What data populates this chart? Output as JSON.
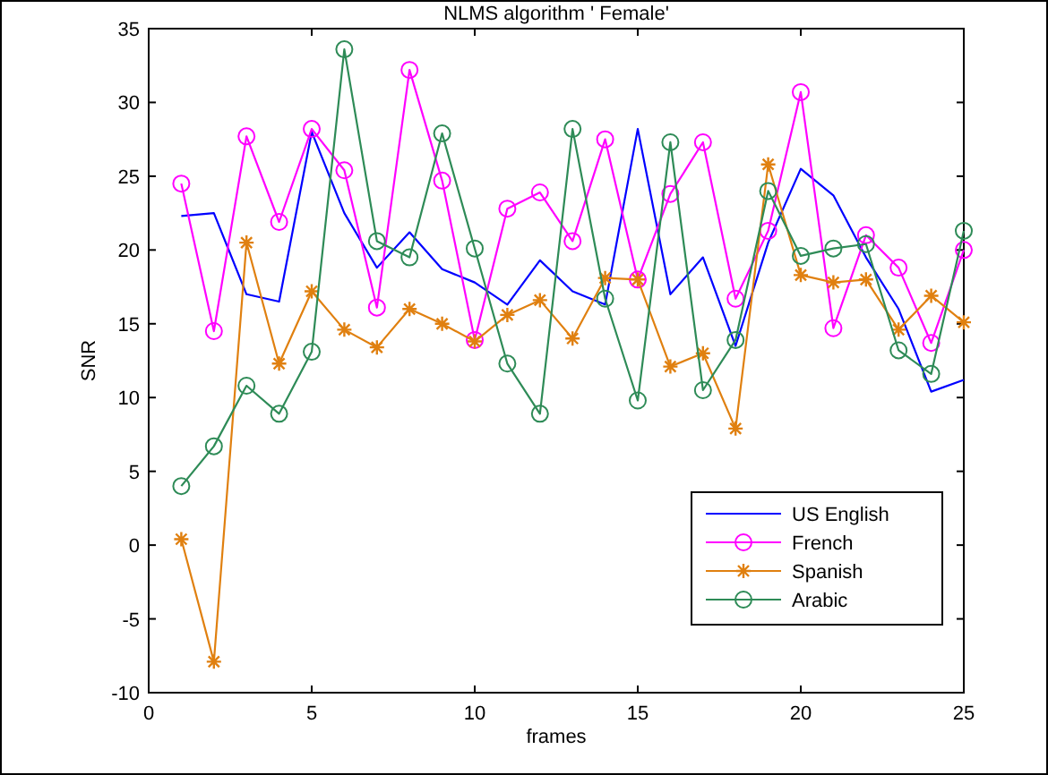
{
  "chart_data": {
    "type": "line",
    "title": "NLMS algorithm ' Female'",
    "xlabel": "frames",
    "ylabel": "SNR",
    "x": [
      1,
      2,
      3,
      4,
      5,
      6,
      7,
      8,
      9,
      10,
      11,
      12,
      13,
      14,
      15,
      16,
      17,
      18,
      19,
      20,
      21,
      22,
      23,
      24,
      25
    ],
    "series": [
      {
        "name": "US English",
        "color": "#0000ff",
        "marker": "none",
        "values": [
          22.3,
          22.5,
          17,
          16.5,
          28,
          22.5,
          18.8,
          21.2,
          18.7,
          17.8,
          16.3,
          19.3,
          17.2,
          16.3,
          28.2,
          17,
          19.5,
          13.5,
          20.5,
          25.5,
          23.7,
          19.5,
          16,
          10.4,
          11.2
        ]
      },
      {
        "name": "French",
        "color": "#ff00ff",
        "marker": "circle",
        "values": [
          24.5,
          14.5,
          27.7,
          21.9,
          28.2,
          25.4,
          16.1,
          32.2,
          24.7,
          13.9,
          22.8,
          23.9,
          20.6,
          27.5,
          18,
          23.8,
          27.3,
          16.7,
          21.3,
          30.7,
          14.7,
          21,
          18.8,
          13.7,
          20
        ]
      },
      {
        "name": "Spanish",
        "color": "#e08010",
        "marker": "cross",
        "values": [
          0.4,
          -7.9,
          20.5,
          12.3,
          17.2,
          14.6,
          13.4,
          16,
          15,
          13.8,
          15.6,
          16.6,
          14,
          18.1,
          18,
          12.1,
          13,
          7.9,
          25.8,
          18.3,
          17.8,
          18,
          14.6,
          16.9,
          15.1
        ]
      },
      {
        "name": "Arabic",
        "color": "#2e8b57",
        "marker": "circle",
        "values": [
          4,
          6.7,
          10.8,
          8.9,
          13.1,
          33.6,
          20.6,
          19.5,
          27.9,
          20.1,
          12.3,
          8.9,
          28.2,
          16.7,
          9.8,
          27.3,
          10.5,
          13.9,
          24,
          19.6,
          20.1,
          20.4,
          13.2,
          11.6,
          21.3
        ]
      }
    ],
    "xlim": [
      0,
      25
    ],
    "xticks": [
      0,
      5,
      10,
      15,
      20,
      25
    ],
    "ylim": [
      -10,
      35
    ],
    "yticks": [
      -10,
      -5,
      0,
      5,
      10,
      15,
      20,
      25,
      30,
      35
    ],
    "grid": false,
    "legend": "bottom right"
  }
}
